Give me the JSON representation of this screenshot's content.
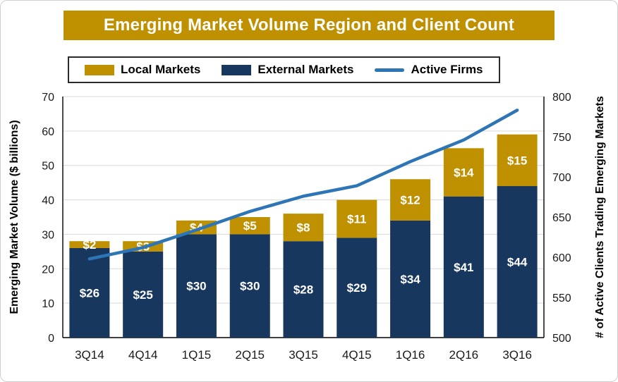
{
  "title": "Emerging Market Volume Region and Client Count",
  "chart_data": {
    "type": "bar",
    "subtype": "stacked-bar-with-line",
    "categories": [
      "3Q14",
      "4Q14",
      "1Q15",
      "2Q15",
      "3Q15",
      "4Q15",
      "1Q16",
      "2Q16",
      "3Q16"
    ],
    "series": [
      {
        "name": "External Markets",
        "type": "bar",
        "color": "#17375E",
        "values": [
          26,
          25,
          30,
          30,
          28,
          29,
          34,
          41,
          44
        ],
        "labels": [
          "$26",
          "$25",
          "$30",
          "$30",
          "$28",
          "$29",
          "$34",
          "$41",
          "$44"
        ]
      },
      {
        "name": "Local Markets",
        "type": "bar",
        "color": "#BF9000",
        "values": [
          2,
          3,
          4,
          5,
          8,
          11,
          12,
          14,
          15
        ],
        "labels": [
          "$2",
          "$3",
          "$4",
          "$5",
          "$8",
          "$11",
          "$12",
          "$14",
          "$15"
        ]
      },
      {
        "name": "Active Firms",
        "type": "line",
        "axis": "right",
        "color": "#2E75B6",
        "values": [
          598,
          612,
          634,
          657,
          676,
          689,
          719,
          746,
          783
        ]
      }
    ],
    "left_axis": {
      "label": "Emerging Market Volume ($ billions)",
      "min": 0,
      "max": 70,
      "step": 10
    },
    "right_axis": {
      "label": "# of Active Clients Trading Emerging Markets",
      "min": 500,
      "max": 800,
      "step": 50
    },
    "legend": [
      {
        "label": "Local Markets",
        "color": "#BF9000",
        "kind": "swatch"
      },
      {
        "label": "External Markets",
        "color": "#17375E",
        "kind": "swatch"
      },
      {
        "label": "Active Firms",
        "color": "#2E75B6",
        "kind": "line"
      }
    ],
    "grid": true,
    "gridline_color": "#D9D9D9",
    "bar_label_color": "#FFFFFF"
  }
}
